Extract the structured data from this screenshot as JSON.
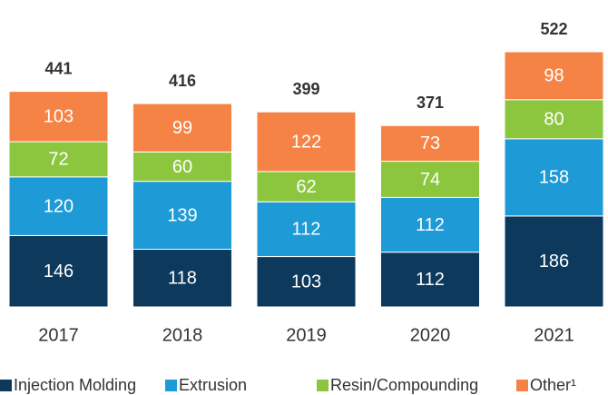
{
  "chart_data": {
    "type": "stacked_bar",
    "categories": [
      "2017",
      "2018",
      "2019",
      "2020",
      "2021"
    ],
    "series": [
      {
        "name": "Injection Molding",
        "color": "#0d3a5c",
        "values": [
          146,
          118,
          103,
          112,
          186
        ]
      },
      {
        "name": "Extrusion",
        "color": "#1e9ad6",
        "values": [
          120,
          139,
          112,
          112,
          158
        ]
      },
      {
        "name": "Resin/Compounding",
        "color": "#8cc63f",
        "values": [
          72,
          60,
          62,
          74,
          80
        ]
      },
      {
        "name": "Other¹",
        "color": "#f58345",
        "values": [
          103,
          99,
          122,
          73,
          98
        ]
      }
    ],
    "totals": [
      441,
      416,
      399,
      371,
      522
    ],
    "legend": "bottom"
  }
}
